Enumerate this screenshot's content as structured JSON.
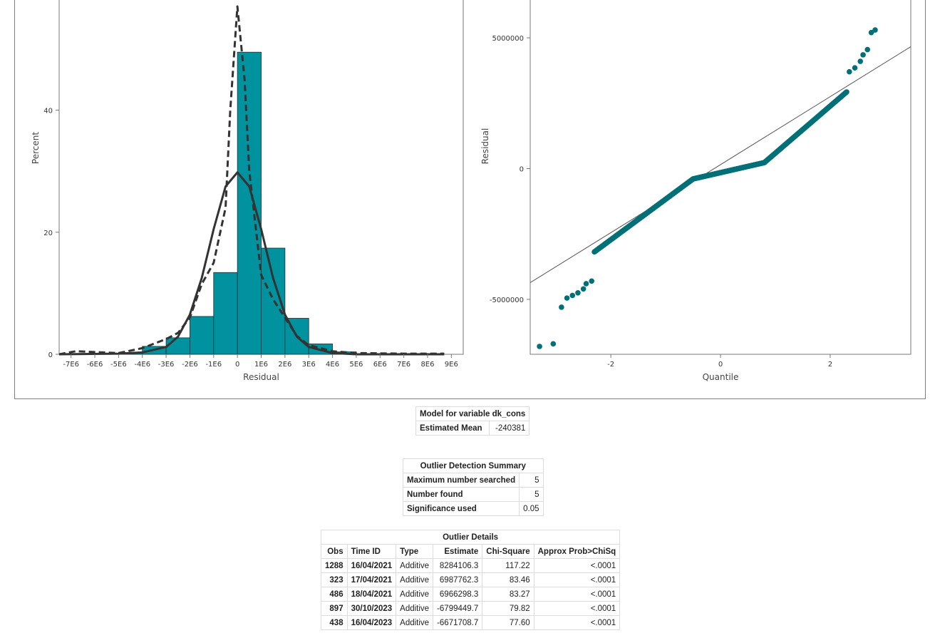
{
  "chart_data": [
    {
      "type": "bar",
      "subtype": "histogram-with-density",
      "xlabel": "Residual",
      "ylabel": "Percent",
      "x_tick_labels": [
        "-7E6",
        "-6E6",
        "-5E6",
        "-4E6",
        "-3E6",
        "-2E6",
        "-1E6",
        "0",
        "1E6",
        "2E6",
        "3E6",
        "4E6",
        "5E6",
        "6E6",
        "7E6",
        "8E6",
        "9E6"
      ],
      "x_ticks": [
        -7,
        -6,
        -5,
        -4,
        -3,
        -2,
        -1,
        0,
        1,
        2,
        3,
        4,
        5,
        6,
        7,
        8,
        9
      ],
      "y_tick_labels": [
        "0",
        "20",
        "40"
      ],
      "y_ticks": [
        0,
        20,
        40
      ],
      "xlim": [
        -7.5,
        9.5
      ],
      "ylim": [
        0,
        57
      ],
      "x_units": "millions",
      "bin_edges": [
        -5,
        -4,
        -3,
        -2,
        -1,
        0,
        1,
        2,
        3,
        4,
        5
      ],
      "values": [
        0.3,
        1.3,
        2.7,
        6.2,
        13.4,
        49.5,
        17.4,
        5.9,
        1.7,
        0.4
      ],
      "series": [
        {
          "name": "Normal",
          "style": "solid",
          "x": [
            -7.5,
            -5,
            -4,
            -3,
            -2.5,
            -2,
            -1.5,
            -1,
            -0.5,
            0,
            0.5,
            1,
            1.5,
            2,
            2.5,
            3,
            4,
            5,
            6,
            8.7
          ],
          "y": [
            0,
            0.1,
            0.3,
            1.2,
            2.9,
            6.5,
            12.5,
            20.5,
            27.5,
            29.8,
            27.5,
            20.5,
            12.5,
            6.5,
            2.9,
            1.2,
            0.2,
            0,
            0,
            0
          ]
        },
        {
          "name": "Kernel",
          "style": "dashed",
          "x": [
            -7.5,
            -6.8,
            -5,
            -4,
            -3,
            -2.5,
            -2,
            -1.5,
            -1,
            -0.5,
            -0.3,
            0,
            0.3,
            0.5,
            1,
            1.5,
            2,
            2.5,
            3,
            4,
            5,
            7,
            8.7
          ],
          "y": [
            0,
            0.5,
            0.2,
            1,
            2.5,
            3.5,
            6,
            11.5,
            15,
            24,
            40,
            57,
            45,
            30,
            13,
            9,
            6,
            3,
            1.5,
            0.5,
            0.2,
            0.1,
            0.1
          ]
        }
      ],
      "bar_color": "#00929f",
      "grid": false
    },
    {
      "type": "scatter",
      "subtype": "qq-plot",
      "xlabel": "Quantile",
      "ylabel": "Residual",
      "x_tick_labels": [
        "-2",
        "0",
        "2"
      ],
      "x_ticks": [
        -2,
        0,
        2
      ],
      "y_tick_labels": [
        "-5000000",
        "0",
        "5000000"
      ],
      "y_ticks": [
        -5000000,
        0,
        5000000
      ],
      "xlim": [
        -3.47,
        3.47
      ],
      "ylim": [
        -7100000,
        6500000
      ],
      "reference_line": {
        "intercept": 150000,
        "slope": 1300000
      },
      "point_color": "#007078",
      "outer_points": [
        [
          -3.3,
          -6800000
        ],
        [
          -3.05,
          -6700000
        ],
        [
          -2.9,
          -5300000
        ],
        [
          -2.8,
          -4950000
        ],
        [
          -2.7,
          -4850000
        ],
        [
          -2.6,
          -4750000
        ],
        [
          -2.5,
          -4600000
        ],
        [
          -2.45,
          -4400000
        ],
        [
          -2.35,
          -4300000
        ],
        [
          2.35,
          3700000
        ],
        [
          2.45,
          3850000
        ],
        [
          2.55,
          4100000
        ],
        [
          2.6,
          4350000
        ],
        [
          2.68,
          4550000
        ],
        [
          2.75,
          5200000
        ],
        [
          2.82,
          5300000
        ]
      ]
    }
  ],
  "model_table": {
    "caption": "Model for variable dk_cons",
    "row_label": "Estimated Mean",
    "row_value": "-240381"
  },
  "summary_table": {
    "caption": "Outlier Detection Summary",
    "rows": [
      {
        "label": "Maximum number searched",
        "value": "5"
      },
      {
        "label": "Number found",
        "value": "5"
      },
      {
        "label": "Significance used",
        "value": "0.05"
      }
    ]
  },
  "details_table": {
    "caption": "Outlier Details",
    "headers": [
      "Obs",
      "Time ID",
      "Type",
      "Estimate",
      "Chi-Square",
      "Approx Prob>ChiSq"
    ],
    "rows": [
      [
        "1288",
        "16/04/2021",
        "Additive",
        "8284106.3",
        "117.22",
        "<.0001"
      ],
      [
        "323",
        "17/04/2021",
        "Additive",
        "6987762.3",
        "83.46",
        "<.0001"
      ],
      [
        "486",
        "18/04/2021",
        "Additive",
        "6966298.3",
        "83.27",
        "<.0001"
      ],
      [
        "897",
        "30/10/2023",
        "Additive",
        "-6799449.7",
        "79.82",
        "<.0001"
      ],
      [
        "438",
        "16/04/2023",
        "Additive",
        "-6671708.7",
        "77.60",
        "<.0001"
      ]
    ]
  }
}
